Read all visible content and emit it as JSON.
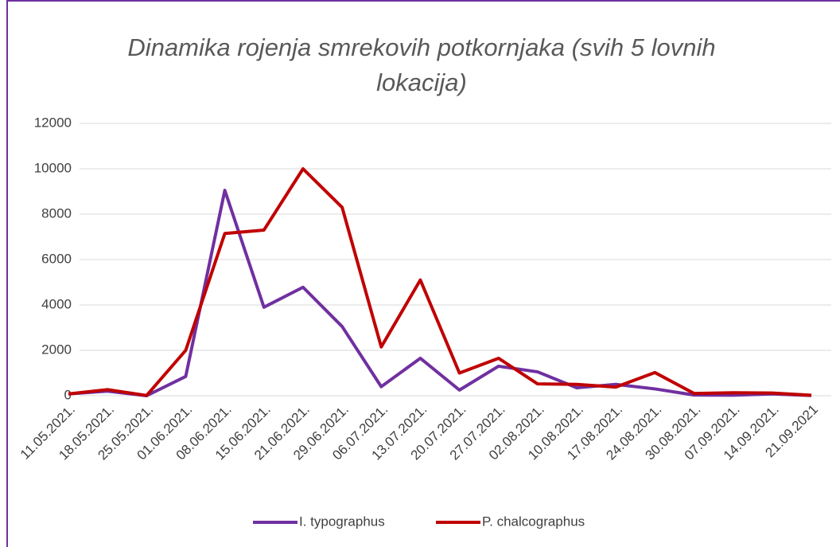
{
  "chart_data": {
    "type": "line",
    "title": "Dinamika rojenja smrekovih potkornjaka (svih 5 lovnih lokacija)",
    "categories": [
      "11.05.2021.",
      "18.05.2021.",
      "25.05.2021.",
      "01.06.2021.",
      "08.06.2021.",
      "15.06.2021.",
      "21.06.2021.",
      "29.06.2021.",
      "06.07.2021.",
      "13.07.2021.",
      "20.07.2021.",
      "27.07.2021.",
      "02.08.2021.",
      "10.08.2021.",
      "17.08.2021.",
      "24.08.2021.",
      "30.08.2021.",
      "07.09.2021.",
      "14.09.2021.",
      "21.09.2021"
    ],
    "series": [
      {
        "name": "I. typographus",
        "color": "#7030a0",
        "values": [
          80,
          200,
          0,
          850,
          9050,
          3900,
          4780,
          3050,
          400,
          1650,
          250,
          1300,
          1050,
          350,
          500,
          300,
          30,
          20,
          80,
          10
        ]
      },
      {
        "name": "P. chalcographus",
        "color": "#c00000",
        "values": [
          80,
          270,
          10,
          2000,
          7150,
          7300,
          10000,
          8300,
          2150,
          5100,
          1000,
          1650,
          520,
          500,
          380,
          1020,
          100,
          130,
          120,
          20
        ]
      }
    ],
    "ylim": [
      0,
      12000
    ],
    "yticks": [
      0,
      2000,
      4000,
      6000,
      8000,
      10000,
      12000
    ],
    "grid": true,
    "legend": "bottom"
  }
}
